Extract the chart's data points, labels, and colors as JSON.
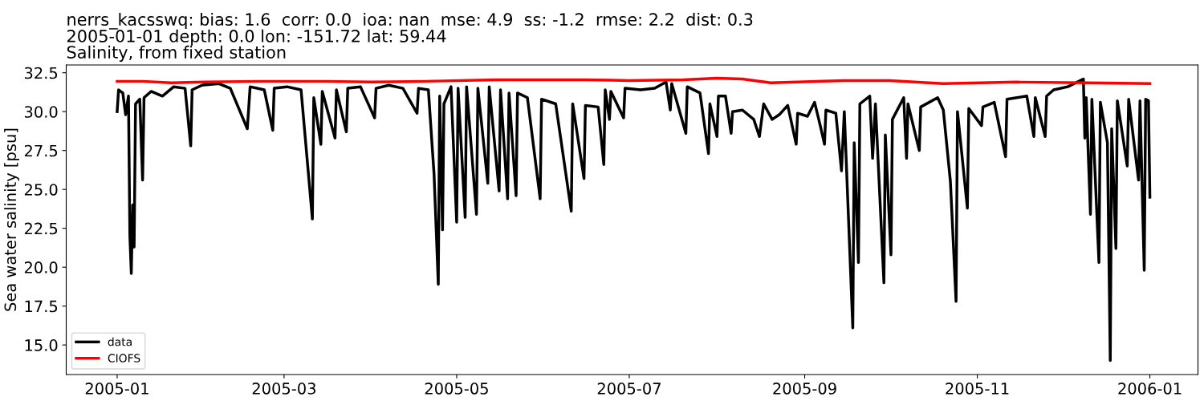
{
  "chart_data": {
    "type": "line",
    "title": "nerrs_kacsswq: bias: 1.6  corr: 0.0  ioa: nan  mse: 4.9  ss: -1.2  rmse: 2.2  dist: 0.3\n2005-01-01 depth: 0.0 lon: -151.72 lat: 59.44\nSalinity, from fixed station",
    "ylabel": "Sea water salinity [psu]",
    "xlim": [
      "2004-12-14",
      "2006-01-18"
    ],
    "xticks": [
      {
        "value": "2005-01-01",
        "label": "2005-01"
      },
      {
        "value": "2005-03-01",
        "label": "2005-03"
      },
      {
        "value": "2005-05-01",
        "label": "2005-05"
      },
      {
        "value": "2005-07-01",
        "label": "2005-07"
      },
      {
        "value": "2005-09-01",
        "label": "2005-09"
      },
      {
        "value": "2005-11-01",
        "label": "2005-11"
      },
      {
        "value": "2006-01-01",
        "label": "2006-01"
      }
    ],
    "ylim": [
      13.1,
      33.0
    ],
    "yticks": [
      {
        "value": 15,
        "label": "15.0"
      },
      {
        "value": 17.5,
        "label": "17.5"
      },
      {
        "value": 20,
        "label": "20.0"
      },
      {
        "value": 22.5,
        "label": "22.5"
      },
      {
        "value": 25,
        "label": "25.0"
      },
      {
        "value": 27.5,
        "label": "27.5"
      },
      {
        "value": 30,
        "label": "30.0"
      },
      {
        "value": 32.5,
        "label": "32.5"
      }
    ],
    "grid": false,
    "legend": "bottom left",
    "marker": "none",
    "line_style": "solid",
    "series": [
      {
        "name": "data",
        "color": "#000000",
        "x": [
          "2005-01-01",
          "2005-01-01T12:00",
          "2005-01-03",
          "2005-01-04",
          "2005-01-05",
          "2005-01-05T12:00",
          "2005-01-06",
          "2005-01-06T12:00",
          "2005-01-07",
          "2005-01-07T12:00",
          "2005-01-09",
          "2005-01-10",
          "2005-01-10T12:00",
          "2005-01-13",
          "2005-01-17",
          "2005-01-21",
          "2005-01-25",
          "2005-01-27",
          "2005-01-27T12:00",
          "2005-01-31",
          "2005-02-06",
          "2005-02-10",
          "2005-02-16",
          "2005-02-17",
          "2005-02-22",
          "2005-02-25",
          "2005-02-25T12:00",
          "2005-03-02",
          "2005-03-07",
          "2005-03-11",
          "2005-03-11T12:00",
          "2005-03-14",
          "2005-03-14T12:00",
          "2005-03-19",
          "2005-03-19T12:00",
          "2005-03-23",
          "2005-03-23T12:00",
          "2005-03-28",
          "2005-04-02",
          "2005-04-02T12:00",
          "2005-04-07",
          "2005-04-12",
          "2005-04-17",
          "2005-04-17T12:00",
          "2005-04-21",
          "2005-04-23",
          "2005-04-24T12:00",
          "2005-04-25",
          "2005-04-26",
          "2005-04-26T12:00",
          "2005-04-29",
          "2005-05-01",
          "2005-05-01T12:00",
          "2005-05-04",
          "2005-05-04T12:00",
          "2005-05-08",
          "2005-05-08T12:00",
          "2005-05-12",
          "2005-05-12T12:00",
          "2005-05-16",
          "2005-05-16T12:00",
          "2005-05-19",
          "2005-05-19T12:00",
          "2005-05-22",
          "2005-05-22T12:00",
          "2005-05-26",
          "2005-05-30T12:00",
          "2005-05-31",
          "2005-06-05",
          "2005-06-10T12:00",
          "2005-06-11",
          "2005-06-15",
          "2005-06-15T12:00",
          "2005-06-20",
          "2005-06-22",
          "2005-06-22T12:00",
          "2005-06-24",
          "2005-06-24T12:00",
          "2005-06-29",
          "2005-06-29T12:00",
          "2005-07-05",
          "2005-07-10",
          "2005-07-14",
          "2005-07-15T12:00",
          "2005-07-16",
          "2005-07-21",
          "2005-07-21T12:00",
          "2005-07-26",
          "2005-07-29",
          "2005-07-29T12:00",
          "2005-08-01",
          "2005-08-01T12:00",
          "2005-08-04",
          "2005-08-06",
          "2005-08-06T12:00",
          "2005-08-10",
          "2005-08-14",
          "2005-08-16",
          "2005-08-17T12:00",
          "2005-08-20T12:00",
          "2005-08-23",
          "2005-08-26",
          "2005-08-29",
          "2005-08-29T12:00",
          "2005-09-02",
          "2005-09-04T12:00",
          "2005-09-06T12:00",
          "2005-09-08",
          "2005-09-08T12:00",
          "2005-09-12",
          "2005-09-14",
          "2005-09-15",
          "2005-09-18",
          "2005-09-18T12:00",
          "2005-09-20",
          "2005-09-20T12:00",
          "2005-09-24",
          "2005-09-25",
          "2005-09-26",
          "2005-09-29",
          "2005-09-29T12:00",
          "2005-10-01T12:00",
          "2005-10-02",
          "2005-10-06",
          "2005-10-07",
          "2005-10-07T12:00",
          "2005-10-11T12:00",
          "2005-10-12",
          "2005-10-18",
          "2005-10-20",
          "2005-10-22T12:00",
          "2005-10-24T12:00",
          "2005-10-25",
          "2005-10-28T12:00",
          "2005-10-29",
          "2005-11-02T12:00",
          "2005-11-03",
          "2005-11-07",
          "2005-11-11",
          "2005-11-11T12:00",
          "2005-11-15",
          "2005-11-18T12:00",
          "2005-11-21",
          "2005-11-21T12:00",
          "2005-11-25",
          "2005-11-25T12:00",
          "2005-11-28",
          "2005-12-03",
          "2005-12-08T12:00",
          "2005-12-09",
          "2005-12-09T12:00",
          "2005-12-11",
          "2005-12-11T12:00",
          "2005-12-14",
          "2005-12-14T12:00",
          "2005-12-17",
          "2005-12-18",
          "2005-12-18T12:00",
          "2005-12-20",
          "2005-12-20T12:00",
          "2005-12-24",
          "2005-12-24T12:00",
          "2005-12-28",
          "2005-12-28T12:00",
          "2005-12-30",
          "2005-12-30T12:00",
          "2005-12-31T12:00",
          "2006-01-01"
        ],
        "values": [
          30.0,
          31.4,
          31.2,
          29.8,
          31.0,
          22.0,
          19.6,
          24.0,
          21.3,
          30.5,
          30.8,
          25.6,
          30.9,
          31.3,
          31.0,
          31.6,
          31.5,
          27.8,
          31.4,
          31.7,
          31.8,
          31.5,
          28.9,
          31.6,
          31.4,
          28.8,
          31.5,
          31.6,
          31.4,
          23.1,
          30.9,
          27.9,
          31.3,
          28.3,
          31.4,
          28.7,
          31.5,
          31.6,
          29.6,
          31.5,
          31.7,
          31.5,
          29.9,
          31.5,
          31.4,
          26.0,
          18.9,
          31.0,
          22.4,
          30.5,
          31.6,
          22.9,
          31.5,
          23.2,
          31.6,
          23.4,
          31.5,
          25.4,
          31.6,
          24.9,
          31.4,
          24.4,
          31.2,
          24.6,
          31.2,
          30.9,
          24.4,
          30.8,
          30.5,
          23.6,
          30.5,
          25.7,
          30.4,
          30.3,
          26.6,
          31.4,
          29.5,
          31.3,
          29.6,
          31.5,
          31.4,
          31.5,
          31.9,
          30.1,
          31.8,
          28.6,
          31.6,
          31.2,
          27.3,
          30.5,
          28.4,
          31.0,
          31.0,
          28.6,
          30.0,
          30.1,
          29.5,
          28.4,
          30.5,
          29.5,
          29.8,
          30.4,
          27.9,
          29.9,
          29.7,
          30.6,
          29.1,
          27.9,
          30.1,
          29.9,
          26.2,
          30.0,
          16.1,
          28.0,
          20.3,
          30.5,
          31.0,
          27.0,
          30.5,
          19.0,
          28.5,
          20.8,
          29.5,
          30.9,
          27.0,
          30.5,
          27.5,
          30.3,
          30.9,
          30.1,
          25.5,
          17.8,
          30.0,
          23.8,
          30.2,
          29.1,
          30.3,
          30.6,
          27.1,
          30.8,
          30.9,
          31.0,
          28.4,
          30.9,
          28.4,
          31.0,
          31.4,
          31.6,
          32.1,
          28.3,
          30.9,
          23.4,
          30.8,
          20.3,
          30.6,
          28.0,
          14.0,
          28.9,
          21.2,
          30.7,
          26.5,
          30.8,
          25.6,
          30.7,
          19.8,
          30.8,
          30.7,
          24.5
        ]
      },
      {
        "name": "CIOFS",
        "color": "#ff0000",
        "x": [
          "2005-01-01",
          "2005-01-10",
          "2005-01-20",
          "2005-02-01",
          "2005-02-20",
          "2005-03-15",
          "2005-04-01",
          "2005-04-20",
          "2005-05-15",
          "2005-06-15",
          "2005-07-01",
          "2005-07-20",
          "2005-08-01",
          "2005-08-10",
          "2005-08-20",
          "2005-09-15",
          "2005-10-01",
          "2005-10-20",
          "2005-11-15",
          "2005-12-10",
          "2006-01-01"
        ],
        "values": [
          31.95,
          31.95,
          31.85,
          31.9,
          31.95,
          31.95,
          31.9,
          31.95,
          32.05,
          32.05,
          32.0,
          32.05,
          32.15,
          32.1,
          31.85,
          32.0,
          32.0,
          31.8,
          31.9,
          31.85,
          31.8
        ]
      }
    ]
  }
}
